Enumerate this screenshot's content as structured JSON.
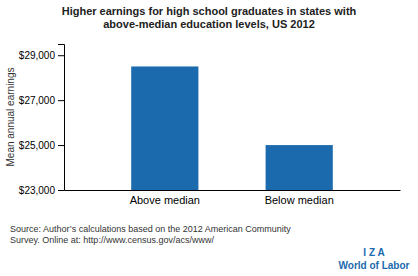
{
  "chart_data": {
    "type": "bar",
    "title": "Higher earnings for high school graduates in states with\nabove-median education levels, US 2012",
    "categories": [
      "Above median",
      "Below median"
    ],
    "values": [
      28500,
      25000
    ],
    "color": "#1a6aad",
    "ylabel": "Mean annual earnings",
    "ylim": [
      23000,
      29500
    ],
    "yticks": [
      {
        "value": 23000,
        "label": "$23,000"
      },
      {
        "value": 25000,
        "label": "$25,000"
      },
      {
        "value": 27000,
        "label": "$27,000"
      },
      {
        "value": 29000,
        "label": "$29,000"
      }
    ],
    "annotations": [
      "Source: Author’s calculations based on the 2012 American Community\nSurvey. Online at: http://www.census.gov/acs/www/",
      "I  Z  A",
      "World of Labor"
    ]
  }
}
